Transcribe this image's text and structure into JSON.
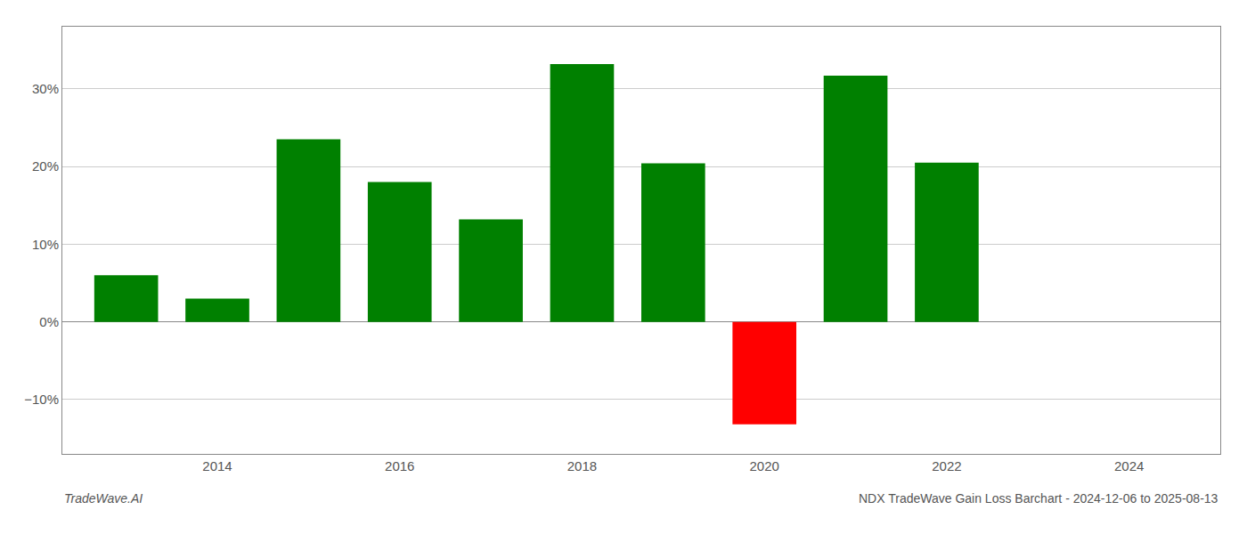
{
  "chart_data": {
    "type": "bar",
    "x": [
      2013,
      2014,
      2015,
      2016,
      2017,
      2018,
      2019,
      2020,
      2021,
      2022,
      2023
    ],
    "values": [
      6.0,
      3.0,
      23.5,
      18.0,
      13.2,
      33.2,
      20.4,
      -13.2,
      31.7,
      20.5,
      0.0
    ],
    "colors": [
      "#008000",
      "#008000",
      "#008000",
      "#008000",
      "#008000",
      "#008000",
      "#008000",
      "#ff0000",
      "#008000",
      "#008000",
      "#008000"
    ],
    "xlim": [
      2012.3,
      2025.0
    ],
    "xticks": [
      2014,
      2016,
      2018,
      2020,
      2022,
      2024
    ],
    "ylim": [
      -17,
      38
    ],
    "yticks": [
      {
        "value": -10,
        "label": "−10%"
      },
      {
        "value": 0,
        "label": "0%"
      },
      {
        "value": 10,
        "label": "10%"
      },
      {
        "value": 20,
        "label": "20%"
      },
      {
        "value": 30,
        "label": "30%"
      }
    ],
    "grid": true,
    "annotations": [
      "TradeWave.AI",
      "NDX TradeWave Gain Loss Barchart - 2024-12-06 to 2025-08-13"
    ]
  }
}
